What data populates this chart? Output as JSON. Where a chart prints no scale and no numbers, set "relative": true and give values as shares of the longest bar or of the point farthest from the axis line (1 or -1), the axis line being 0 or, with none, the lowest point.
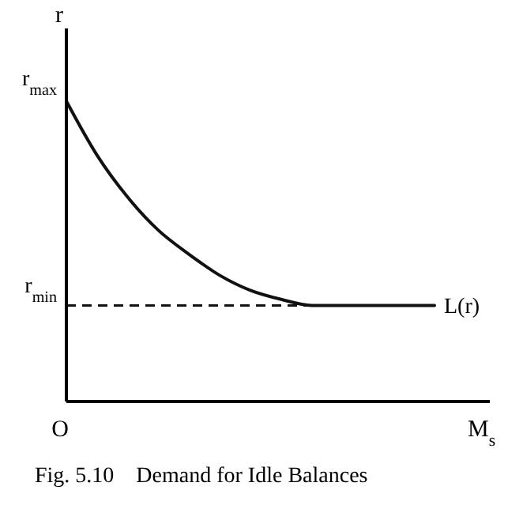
{
  "chart_data": {
    "type": "line",
    "title": "Fig. 5.10    Demand for Idle Balances",
    "xlabel": "M$_{s}$",
    "ylabel": "r",
    "relative": true,
    "categories": [
      null,
      null,
      null,
      null,
      null,
      null,
      null,
      null,
      null,
      null,
      null,
      null,
      null
    ],
    "series": [
      {
        "name": "L(r)",
        "color": "#111111",
        "values": [
          1.0,
          0.82,
          0.68,
          0.57,
          0.49,
          0.42,
          0.37,
          0.34,
          0.32,
          0.32,
          0.32,
          0.32,
          0.32
        ]
      }
    ],
    "ref_lines": [
      {
        "axis": "y",
        "value": 0.32,
        "label": "r$_{min}$",
        "line_style": "dashed",
        "color": "#111111"
      }
    ],
    "annotations": [
      "r$_{max}$",
      "O"
    ]
  }
}
